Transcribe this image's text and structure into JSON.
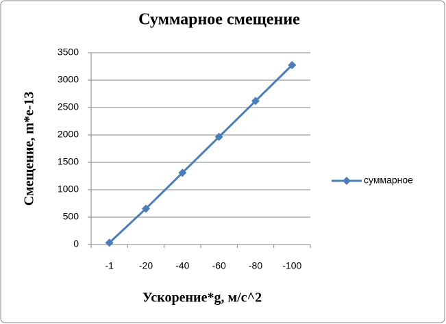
{
  "chart_data": {
    "type": "line",
    "title": "Суммарное смещение",
    "x_label": "Ускорение*g, м/с^2",
    "y_label": "Смещение, m*e-13",
    "categories": [
      "-1",
      "-20",
      "-40",
      "-60",
      "-80",
      "-100"
    ],
    "series": [
      {
        "name": "суммарное",
        "color": "#4a7ebb",
        "values": [
          33,
          655,
          1310,
          1965,
          2620,
          3275
        ]
      }
    ],
    "ylim": [
      0,
      3500
    ],
    "yticks": [
      0,
      500,
      1000,
      1500,
      2000,
      2500,
      3000,
      3500
    ],
    "grid": true,
    "legend": "right"
  }
}
